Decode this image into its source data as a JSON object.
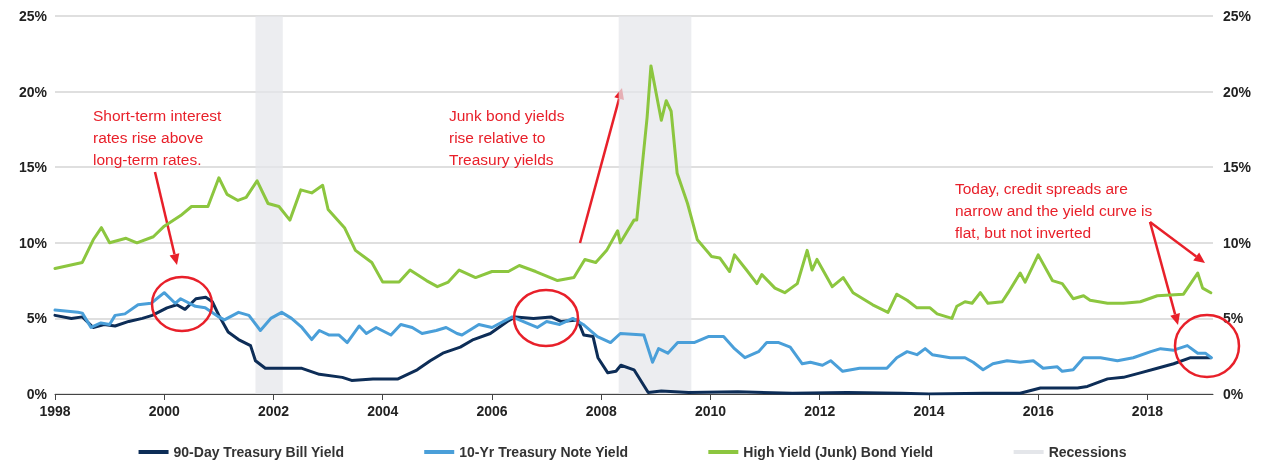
{
  "chart_data": {
    "type": "line",
    "xlim": [
      1998,
      2019.2
    ],
    "xticks": [
      1998,
      2000,
      2002,
      2004,
      2006,
      2008,
      2010,
      2012,
      2014,
      2016,
      2018
    ],
    "ylim": [
      0,
      25
    ],
    "yticks": [
      {
        "value": 0,
        "label": "0%"
      },
      {
        "value": 5,
        "label": "5%"
      },
      {
        "value": 10,
        "label": "10%"
      },
      {
        "value": 15,
        "label": "15%"
      },
      {
        "value": 20,
        "label": "20%"
      },
      {
        "value": 25,
        "label": "25%"
      }
    ],
    "y2lim": [
      0,
      25
    ],
    "y2ticks": [
      {
        "value": 0,
        "label": "0%"
      },
      {
        "value": 5,
        "label": "5%"
      },
      {
        "value": 10,
        "label": "10%"
      },
      {
        "value": 15,
        "label": "15%"
      },
      {
        "value": 20,
        "label": "20%"
      },
      {
        "value": 25,
        "label": "25%"
      }
    ],
    "grid": "y",
    "legend": "bottom",
    "marker": "none",
    "line_style": "solid",
    "series": [
      {
        "name": "90-Day Treasury Bill Yield",
        "color": "#0d2d57",
        "x": [
          1998.0,
          1998.3,
          1998.5,
          1998.7,
          1998.9,
          1999.1,
          1999.35,
          1999.6,
          1999.78,
          2000.05,
          2000.23,
          2000.38,
          2000.58,
          2000.76,
          2000.88,
          2001.0,
          2001.17,
          2001.36,
          2001.58,
          2001.67,
          2001.85,
          2002.1,
          2002.52,
          2002.84,
          2003.26,
          2003.43,
          2003.82,
          2004.28,
          2004.63,
          2004.87,
          2005.1,
          2005.42,
          2005.66,
          2005.97,
          2006.28,
          2006.43,
          2006.76,
          2007.08,
          2007.26,
          2007.57,
          2007.68,
          2007.85,
          2007.94,
          2008.12,
          2008.27,
          2008.36,
          2008.6,
          2008.86,
          2009.1,
          2009.6,
          2010.5,
          2011.5,
          2012.5,
          2013.5,
          2014.0,
          2015.0,
          2015.67,
          2016.04,
          2016.4,
          2016.72,
          2016.9,
          2017.27,
          2017.56,
          2017.87,
          2018.18,
          2018.48,
          2018.79,
          2019.16
        ],
        "values": [
          5.2,
          5.0,
          5.1,
          4.4,
          4.6,
          4.5,
          4.8,
          5.0,
          5.2,
          5.7,
          5.9,
          5.6,
          6.3,
          6.4,
          6.1,
          5.2,
          4.1,
          3.6,
          3.2,
          2.2,
          1.7,
          1.7,
          1.7,
          1.3,
          1.1,
          0.9,
          1.0,
          1.0,
          1.6,
          2.2,
          2.7,
          3.1,
          3.6,
          4.0,
          4.8,
          5.1,
          5.0,
          5.1,
          4.8,
          4.9,
          3.9,
          3.8,
          2.4,
          1.4,
          1.5,
          1.9,
          1.6,
          0.1,
          0.2,
          0.1,
          0.15,
          0.05,
          0.1,
          0.05,
          0.0,
          0.05,
          0.05,
          0.4,
          0.4,
          0.4,
          0.5,
          1.0,
          1.1,
          1.4,
          1.7,
          2.0,
          2.4,
          2.4
        ]
      },
      {
        "name": "10-Yr Treasury Note Yield",
        "color": "#4a9fd9",
        "x": [
          1998.0,
          1998.42,
          1998.5,
          1998.66,
          1998.84,
          1999.0,
          1999.1,
          1999.28,
          1999.52,
          1999.76,
          2000.0,
          2000.2,
          2000.3,
          2000.57,
          2000.75,
          2001.0,
          2001.1,
          2001.36,
          2001.55,
          2001.76,
          2001.95,
          2002.15,
          2002.33,
          2002.52,
          2002.7,
          2002.84,
          2003.02,
          2003.2,
          2003.35,
          2003.57,
          2003.7,
          2003.88,
          2004.15,
          2004.33,
          2004.54,
          2004.72,
          2004.98,
          2005.16,
          2005.36,
          2005.45,
          2005.76,
          2006.0,
          2006.37,
          2006.63,
          2006.83,
          2007.0,
          2007.24,
          2007.48,
          2007.67,
          2007.93,
          2008.17,
          2008.35,
          2008.78,
          2008.94,
          2009.05,
          2009.22,
          2009.4,
          2009.7,
          2009.96,
          2010.24,
          2010.44,
          2010.63,
          2010.88,
          2011.03,
          2011.25,
          2011.46,
          2011.68,
          2011.83,
          2012.05,
          2012.2,
          2012.42,
          2012.73,
          2012.97,
          2013.23,
          2013.41,
          2013.6,
          2013.78,
          2013.93,
          2014.06,
          2014.39,
          2014.66,
          2014.81,
          2014.99,
          2015.17,
          2015.43,
          2015.67,
          2015.91,
          2016.09,
          2016.35,
          2016.44,
          2016.64,
          2016.83,
          2017.14,
          2017.45,
          2017.74,
          2018.06,
          2018.24,
          2018.48,
          2018.73,
          2018.92,
          2019.06,
          2019.17
        ],
        "values": [
          5.55,
          5.4,
          5.35,
          4.4,
          4.7,
          4.6,
          5.2,
          5.3,
          5.9,
          6.0,
          6.7,
          6.0,
          6.3,
          5.8,
          5.7,
          5.1,
          4.9,
          5.4,
          5.2,
          4.2,
          5.0,
          5.4,
          5.0,
          4.4,
          3.6,
          4.2,
          3.9,
          3.9,
          3.4,
          4.5,
          4.0,
          4.4,
          3.9,
          4.6,
          4.4,
          4.0,
          4.2,
          4.4,
          4.0,
          3.9,
          4.6,
          4.4,
          5.1,
          4.7,
          4.4,
          4.8,
          4.6,
          5.0,
          4.6,
          3.8,
          3.4,
          4.0,
          3.9,
          2.1,
          3.0,
          2.7,
          3.4,
          3.4,
          3.8,
          3.8,
          3.0,
          2.4,
          2.8,
          3.4,
          3.4,
          3.1,
          2.0,
          2.1,
          1.9,
          2.2,
          1.5,
          1.7,
          1.7,
          1.7,
          2.4,
          2.8,
          2.6,
          3.0,
          2.6,
          2.4,
          2.4,
          2.1,
          1.6,
          2.0,
          2.2,
          2.1,
          2.2,
          1.7,
          1.8,
          1.5,
          1.6,
          2.4,
          2.4,
          2.2,
          2.4,
          2.8,
          3.0,
          2.9,
          3.2,
          2.7,
          2.7,
          2.4
        ]
      },
      {
        "name": "High Yield (Junk) Bond Yield",
        "color": "#8cc63f",
        "x": [
          1998.0,
          1998.5,
          1998.7,
          1998.85,
          1999.0,
          1999.3,
          1999.5,
          1999.8,
          2000.0,
          2000.3,
          2000.5,
          2000.8,
          2001.0,
          2001.15,
          2001.35,
          2001.5,
          2001.7,
          2001.9,
          2002.1,
          2002.3,
          2002.5,
          2002.7,
          2002.9,
          2003.0,
          2003.3,
          2003.5,
          2003.8,
          2004.0,
          2004.3,
          2004.5,
          2004.8,
          2005.0,
          2005.2,
          2005.4,
          2005.7,
          2006.0,
          2006.3,
          2006.5,
          2006.8,
          2007.2,
          2007.5,
          2007.7,
          2007.9,
          2008.1,
          2008.3,
          2008.35,
          2008.6,
          2008.65,
          2008.84,
          2008.91,
          2009.1,
          2009.19,
          2009.28,
          2009.39,
          2009.58,
          2009.67,
          2009.76,
          2010.02,
          2010.17,
          2010.35,
          2010.44,
          2010.66,
          2010.85,
          2010.94,
          2011.18,
          2011.36,
          2011.59,
          2011.77,
          2011.86,
          2011.95,
          2012.23,
          2012.43,
          2012.61,
          2012.97,
          2013.25,
          2013.41,
          2013.6,
          2013.78,
          2014.02,
          2014.15,
          2014.42,
          2014.51,
          2014.66,
          2014.79,
          2014.94,
          2015.08,
          2015.34,
          2015.45,
          2015.67,
          2015.76,
          2016.0,
          2016.26,
          2016.44,
          2016.64,
          2016.83,
          2016.95,
          2017.27,
          2017.56,
          2017.87,
          2018.18,
          2018.66,
          2018.92,
          2019.01,
          2019.16
        ],
        "values": [
          8.3,
          8.7,
          10.2,
          11.0,
          10.0,
          10.3,
          10.0,
          10.4,
          11.1,
          11.8,
          12.4,
          12.4,
          14.3,
          13.2,
          12.8,
          13.0,
          14.1,
          12.6,
          12.4,
          11.5,
          13.5,
          13.3,
          13.8,
          12.2,
          11.0,
          9.5,
          8.7,
          7.4,
          7.4,
          8.2,
          7.5,
          7.1,
          7.4,
          8.2,
          7.7,
          8.1,
          8.1,
          8.5,
          8.1,
          7.5,
          7.7,
          8.9,
          8.7,
          9.5,
          10.8,
          10.0,
          11.5,
          11.5,
          18.3,
          21.7,
          18.1,
          19.4,
          18.7,
          14.6,
          12.6,
          11.4,
          10.2,
          9.1,
          9.0,
          8.1,
          9.2,
          8.2,
          7.3,
          7.9,
          7.0,
          6.7,
          7.3,
          9.5,
          8.2,
          8.9,
          7.1,
          7.7,
          6.7,
          5.9,
          5.4,
          6.6,
          6.2,
          5.7,
          5.7,
          5.3,
          5.0,
          5.8,
          6.1,
          6.0,
          6.7,
          6.0,
          6.1,
          6.7,
          8.0,
          7.4,
          9.2,
          7.5,
          7.3,
          6.3,
          6.5,
          6.2,
          6.0,
          6.0,
          6.1,
          6.5,
          6.6,
          8.0,
          7.0,
          6.7
        ]
      }
    ],
    "bands": [
      {
        "axis": "x",
        "from": 2001.67,
        "to": 2002.17,
        "label": "Recessions",
        "color": "#e4e6ea"
      },
      {
        "axis": "x",
        "from": 2008.32,
        "to": 2009.65,
        "color": "#e4e6ea"
      }
    ],
    "annotations": [
      "Short-term interest\nrates rise above\nlong-term rates.",
      "Junk bond yields\nrise relative to\nTreasury yields",
      "Today, credit spreads are\nnarrow and the yield curve is\nflat, but not inverted"
    ]
  }
}
